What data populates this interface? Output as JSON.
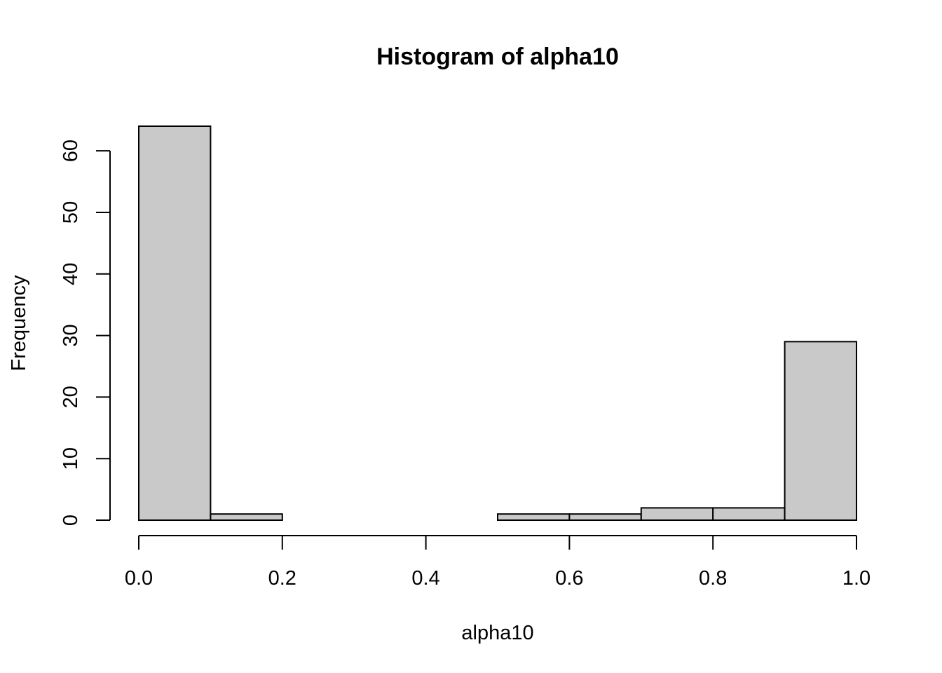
{
  "chart_data": {
    "type": "bar",
    "title": "Histogram of alpha10",
    "xlabel": "alpha10",
    "ylabel": "Frequency",
    "bins": [
      {
        "from": 0.0,
        "to": 0.1,
        "count": 64
      },
      {
        "from": 0.1,
        "to": 0.2,
        "count": 1
      },
      {
        "from": 0.2,
        "to": 0.3,
        "count": 0
      },
      {
        "from": 0.3,
        "to": 0.4,
        "count": 0
      },
      {
        "from": 0.4,
        "to": 0.5,
        "count": 0
      },
      {
        "from": 0.5,
        "to": 0.6,
        "count": 1
      },
      {
        "from": 0.6,
        "to": 0.7,
        "count": 1
      },
      {
        "from": 0.7,
        "to": 0.8,
        "count": 2
      },
      {
        "from": 0.8,
        "to": 0.9,
        "count": 2
      },
      {
        "from": 0.9,
        "to": 1.0,
        "count": 29
      }
    ],
    "xlim": [
      0.0,
      1.0
    ],
    "ylim": [
      0,
      64
    ],
    "x_ticks": [
      0.0,
      0.2,
      0.4,
      0.6,
      0.8,
      1.0
    ],
    "x_tick_labels": [
      "0.0",
      "0.2",
      "0.4",
      "0.6",
      "0.8",
      "1.0"
    ],
    "y_ticks": [
      0,
      10,
      20,
      30,
      40,
      50,
      60
    ],
    "y_tick_labels": [
      "0",
      "10",
      "20",
      "30",
      "40",
      "50",
      "60"
    ],
    "bar_color": "#c9c9c9",
    "grid": false
  }
}
